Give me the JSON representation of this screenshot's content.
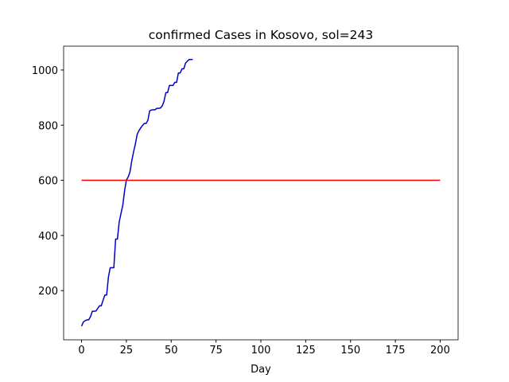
{
  "chart_data": {
    "type": "line",
    "title": "confirmed Cases in Kosovo, sol=243",
    "xlabel": "Day",
    "xlim": [
      -10,
      210
    ],
    "xticks": [
      0,
      25,
      50,
      75,
      100,
      125,
      150,
      175,
      200
    ],
    "ylim": [
      21.6,
      1086.4
    ],
    "yticks": [
      200,
      400,
      600,
      800,
      1000
    ],
    "grid": false,
    "series": [
      {
        "color": "#0000cc",
        "x": [
          0,
          1,
          2,
          3,
          4,
          5,
          6,
          7,
          8,
          9,
          10,
          11,
          12,
          13,
          14,
          15,
          16,
          17,
          18,
          19,
          20,
          21,
          22,
          23,
          24,
          25,
          26,
          27,
          28,
          29,
          30,
          31,
          32,
          33,
          34,
          35,
          36,
          37,
          38,
          39,
          40,
          41,
          42,
          43,
          44,
          45,
          46,
          47,
          48,
          49,
          50,
          51,
          52,
          53,
          54,
          55,
          56,
          57,
          58,
          59,
          60,
          61,
          62
        ],
        "values": [
          71,
          86,
          91,
          94,
          94,
          106,
          125,
          125,
          126,
          135,
          145,
          145,
          165,
          184,
          184,
          250,
          283,
          283,
          283,
          387,
          387,
          449,
          480,
          510,
          562,
          601,
          612,
          630,
          670,
          703,
          731,
          766,
          780,
          790,
          799,
          806,
          806,
          818,
          852,
          855,
          856,
          856,
          861,
          861,
          862,
          870,
          887,
          918,
          918,
          944,
          944,
          944,
          955,
          955,
          989,
          989,
          1004,
          1004,
          1025,
          1032,
          1038,
          1038,
          1038
        ]
      },
      {
        "color": "#ff0000",
        "x": [
          0,
          200
        ],
        "values": [
          600,
          600
        ]
      }
    ]
  }
}
